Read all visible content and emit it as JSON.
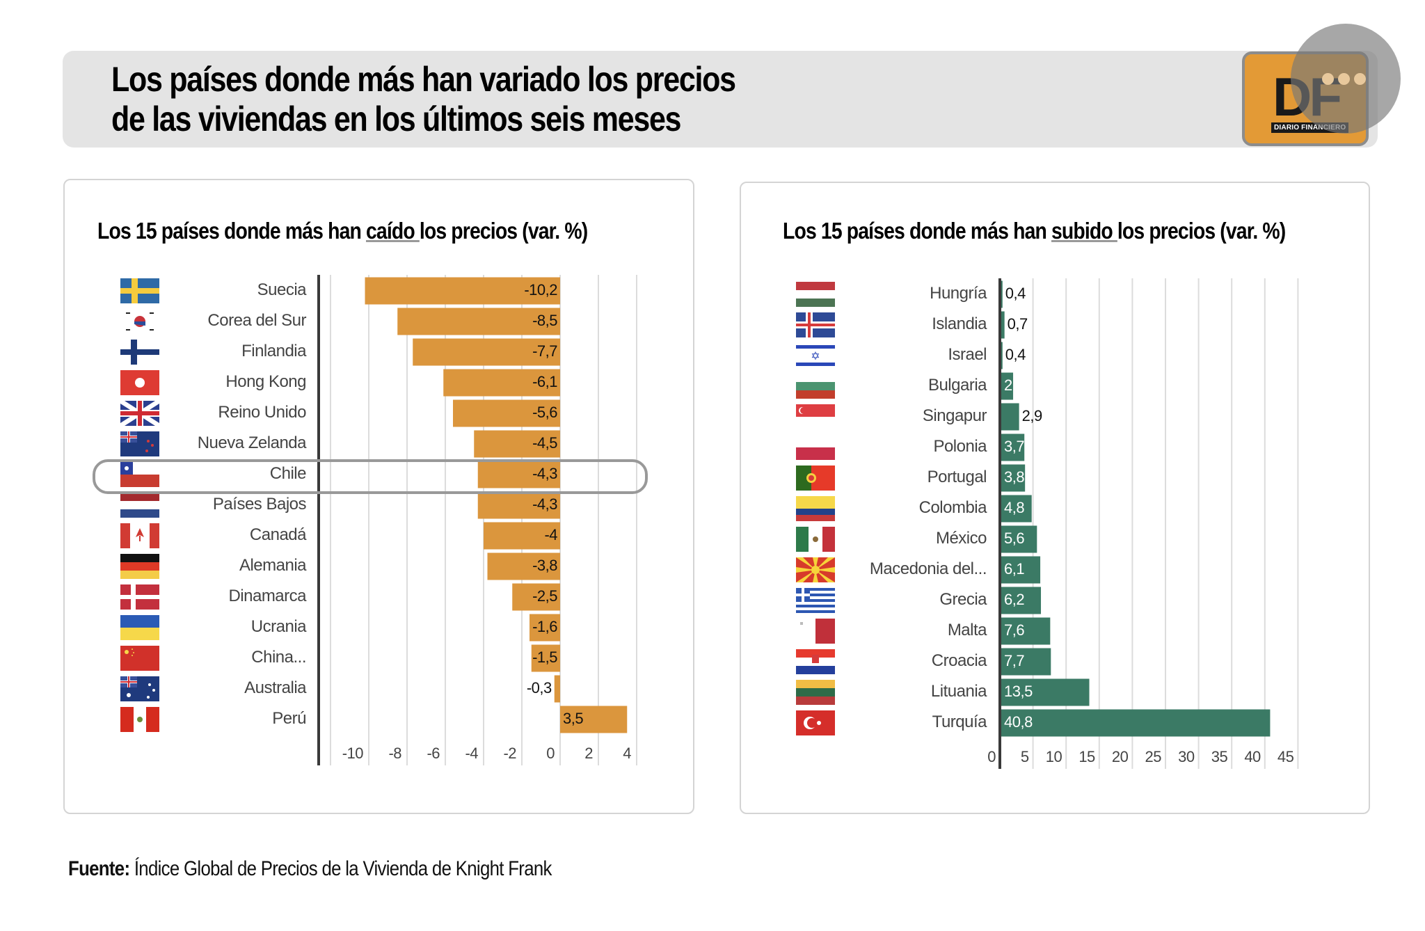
{
  "header": {
    "title_line1": "Los países donde más han variado los precios",
    "title_line2": "de las viviendas en los últimos seis meses"
  },
  "logo": {
    "text": "DF",
    "subtitle": "DIARIO FINANCIERO"
  },
  "colors": {
    "fall_bar": "#db963d",
    "rise_bar": "#3b7a65",
    "header_bg": "#e4e4e4",
    "logo_bg": "#e39a36"
  },
  "source": {
    "label": "Fuente:",
    "text": " Índice Global de Precios de la Vivienda de Knight Frank"
  },
  "chart_data": [
    {
      "type": "bar",
      "orientation": "horizontal",
      "title_before": "Los 15 países donde más han ",
      "title_underlined": "caído ",
      "title_after": "los precios  (var. %)",
      "categories": [
        "Suecia",
        "Corea del Sur",
        "Finlandia",
        "Hong Kong",
        "Reino Unido",
        "Nueva Zelanda",
        "Chile",
        "Países Bajos",
        "Canadá",
        "Alemania",
        "Dinamarca",
        "Ucrania",
        "China...",
        "Australia",
        "Perú"
      ],
      "flags": [
        "flag-sweden",
        "flag-south-korea",
        "flag-finland",
        "flag-hong-kong",
        "flag-united-kingdom",
        "flag-new-zealand",
        "flag-chile",
        "flag-netherlands",
        "flag-canada",
        "flag-germany",
        "flag-denmark",
        "flag-ukraine",
        "flag-china",
        "flag-australia",
        "flag-peru"
      ],
      "values": [
        -10.2,
        -8.5,
        -7.7,
        -6.1,
        -5.6,
        -4.5,
        -4.3,
        -4.3,
        -4,
        -3.8,
        -2.5,
        -1.6,
        -1.5,
        -0.3,
        3.5
      ],
      "value_labels": [
        "-10,2",
        "-8,5",
        "-7,7",
        "-6,1",
        "-5,6",
        "-4,5",
        "-4,3",
        "-4,3",
        "-4",
        "-3,8",
        "-2,5",
        "-1,6",
        "-1,5",
        "-0,3",
        "3,5"
      ],
      "highlight": "Chile",
      "xlim": [
        -12,
        4
      ],
      "xticks": [
        -10,
        -8,
        -6,
        -4,
        -2,
        0,
        2,
        4
      ],
      "xtick_labels": [
        "-10",
        "-8",
        "-6",
        "-4",
        "-2",
        "0",
        "2",
        "4"
      ],
      "grid": true
    },
    {
      "type": "bar",
      "orientation": "horizontal",
      "title_before": "Los 15 países donde más han ",
      "title_underlined": "subido ",
      "title_after": "los precios (var. %)",
      "categories": [
        "Hungría",
        "Islandia",
        "Israel",
        "Bulgaria",
        "Singapur",
        "Polonia",
        "Portugal",
        "Colombia",
        "México",
        "Macedonia del...",
        "Grecia",
        "Malta",
        "Croacia",
        "Lituania",
        "Turquía"
      ],
      "flags": [
        "flag-hungary",
        "flag-iceland",
        "flag-israel",
        "flag-bulgaria",
        "flag-singapore",
        "flag-poland",
        "flag-portugal",
        "flag-colombia",
        "flag-mexico",
        "flag-north-macedonia",
        "flag-greece",
        "flag-malta",
        "flag-croatia",
        "flag-lithuania",
        "flag-turkey"
      ],
      "values": [
        0.4,
        0.7,
        0.4,
        2,
        2.9,
        3.7,
        3.8,
        4.8,
        5.6,
        6.1,
        6.2,
        7.6,
        7.7,
        13.5,
        40.8
      ],
      "value_labels": [
        "0,4",
        "0,7",
        "0,4",
        "2",
        "2,9",
        "3,7",
        "3,8",
        "4,8",
        "5,6",
        "6,1",
        "6,2",
        "7,6",
        "7,7",
        "13,5",
        "40,8"
      ],
      "xlim": [
        0,
        45
      ],
      "xticks": [
        0,
        5,
        10,
        15,
        20,
        25,
        30,
        35,
        40,
        45
      ],
      "xtick_labels": [
        "0",
        "5",
        "10",
        "15",
        "20",
        "25",
        "30",
        "35",
        "40",
        "45"
      ],
      "grid": true
    }
  ]
}
